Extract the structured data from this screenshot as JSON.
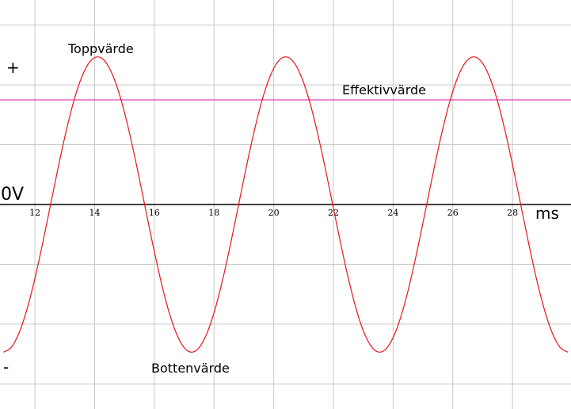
{
  "chart_data": {
    "type": "line",
    "x": [
      10.95,
      11.2125,
      11.475,
      11.7375,
      12.0,
      12.2625,
      12.525,
      12.7875,
      13.05,
      13.3125,
      13.575,
      13.8375,
      14.1,
      14.3625,
      14.625,
      14.8875,
      15.15,
      15.4125,
      15.675,
      15.9375,
      16.2,
      16.4625,
      16.725,
      16.9875,
      17.25,
      17.5125,
      17.775,
      18.0375,
      18.3,
      18.5625,
      18.825,
      19.0875,
      19.35,
      19.6125,
      19.875,
      20.1375,
      20.4,
      20.6625,
      20.925,
      21.1875,
      21.45,
      21.7125,
      21.975,
      22.2375,
      22.5,
      22.7625,
      23.025,
      23.2875,
      23.55,
      23.8125,
      24.075,
      24.3375,
      24.6,
      24.8625,
      25.125,
      25.3875,
      25.65,
      25.9125,
      26.175,
      26.4375,
      26.7,
      26.9625,
      27.225,
      27.4875,
      27.75,
      28.0125,
      28.275,
      28.5375,
      28.8,
      29.0625,
      29.325,
      29.5875,
      29.85
    ],
    "values": [
      -2.47,
      -2.386,
      -2.139,
      -1.747,
      -1.235,
      -0.639,
      0,
      0.639,
      1.235,
      1.747,
      2.139,
      2.386,
      2.47,
      2.386,
      2.139,
      1.747,
      1.235,
      0.639,
      0,
      -0.639,
      -1.235,
      -1.747,
      -2.139,
      -2.386,
      -2.47,
      -2.386,
      -2.139,
      -1.747,
      -1.235,
      -0.639,
      0,
      0.639,
      1.235,
      1.747,
      2.139,
      2.386,
      2.47,
      2.386,
      2.139,
      1.747,
      1.235,
      0.639,
      0,
      -0.639,
      -1.235,
      -1.747,
      -2.139,
      -2.386,
      -2.47,
      -2.386,
      -2.139,
      -1.747,
      -1.235,
      -0.639,
      0,
      0.639,
      1.235,
      1.747,
      2.139,
      2.386,
      2.47,
      2.386,
      2.139,
      1.747,
      1.235,
      0.639,
      0,
      -0.639,
      -1.235,
      -1.747,
      -2.139,
      -2.386,
      -2.47
    ],
    "color": "#e8141e",
    "xlim": [
      10.83,
      29.96
    ],
    "ylim": [
      -3.42,
      3.42
    ],
    "xticks": [
      12,
      14,
      16,
      18,
      20,
      22,
      24,
      26,
      28
    ],
    "yticks": [
      -3,
      -2,
      -1,
      0,
      1,
      2,
      3
    ],
    "grid": true,
    "x_label": "ms",
    "zero_label": "0V",
    "plus_label": "+",
    "minus_label": "-",
    "peak_label": "Toppvärde",
    "trough_label": "Bottenvärde",
    "effective_label": "Effektivvärde",
    "effective_value": 1.75,
    "effective_color": "#d4169c"
  }
}
